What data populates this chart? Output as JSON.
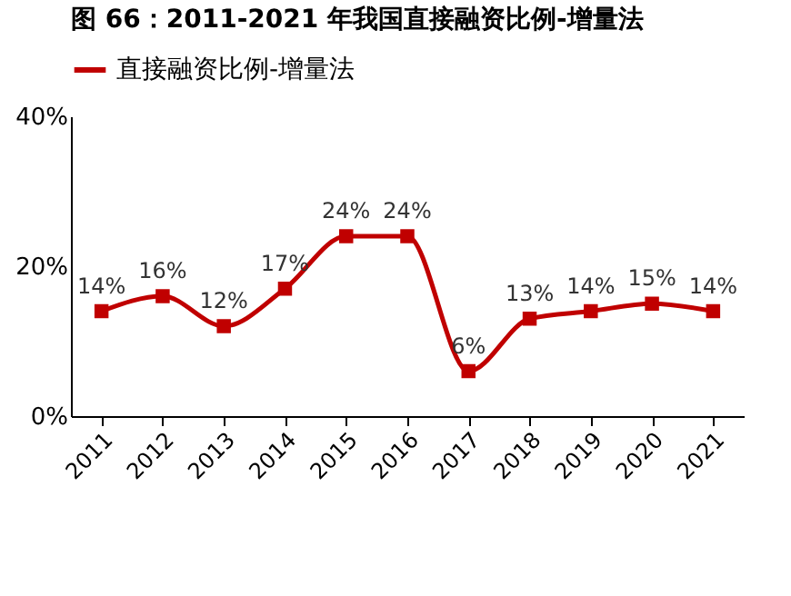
{
  "chart_data": {
    "type": "line",
    "title": "图 66：2011-2021 年我国直接融资比例-增量法",
    "categories": [
      "2011",
      "2012",
      "2013",
      "2014",
      "2015",
      "2016",
      "2017",
      "2018",
      "2019",
      "2020",
      "2021"
    ],
    "series": [
      {
        "name": "直接融资比例-增量法",
        "color": "#c00000",
        "values": [
          14,
          16,
          12,
          17,
          24,
          24,
          6,
          13,
          14,
          15,
          14
        ],
        "value_labels": [
          "14%",
          "16%",
          "12%",
          "17%",
          "24%",
          "24%",
          "6%",
          "13%",
          "14%",
          "15%",
          "14%"
        ]
      }
    ],
    "ylim": [
      0,
      40
    ],
    "yticks": [
      {
        "value": 0,
        "label": "0%"
      },
      {
        "value": 20,
        "label": "20%"
      },
      {
        "value": 40,
        "label": "40%"
      }
    ],
    "grid": false,
    "legend": "top",
    "marker": "square",
    "line_style": "solid"
  }
}
